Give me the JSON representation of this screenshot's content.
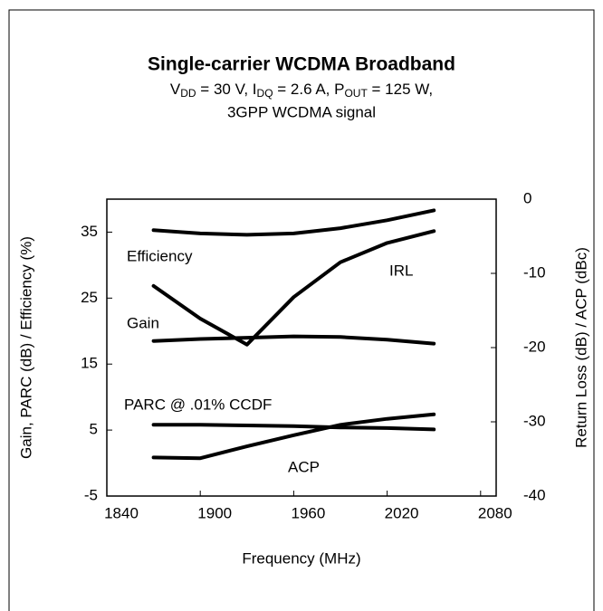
{
  "chart_data": {
    "type": "line",
    "title": "Single-carrier WCDMA Broadband",
    "subtitle": [
      "V",
      "DD",
      " = 30 V, I",
      "DQ",
      " = 2.6 A, P",
      "OUT",
      "  = 125 W,"
    ],
    "subtitle2": "3GPP WCDMA signal",
    "x_label": "Frequency (MHz)",
    "y_label": "Gain, PARC (dB)  / Efficiency (%)",
    "y2_label": "Return Loss (dB) / ACP (dBc)",
    "x": [
      1870,
      1900,
      1930,
      1960,
      1990,
      2020,
      2050
    ],
    "series": [
      {
        "name": "Efficiency",
        "color": "#000000",
        "values": [
          35.3,
          34.8,
          34.6,
          34.8,
          35.6,
          36.8,
          38.3
        ]
      },
      {
        "name": "Gain",
        "color": "#000000",
        "values": [
          18.5,
          18.8,
          19.0,
          19.2,
          19.1,
          18.7,
          18.1
        ]
      },
      {
        "name": "PARC @ .01%  CCDF",
        "color": "#000000",
        "values": [
          5.8,
          5.8,
          5.7,
          5.6,
          5.4,
          5.3,
          5.1
        ]
      },
      {
        "name": "IRL",
        "color": "#000000",
        "axis": "y2",
        "values": [
          -11.7,
          -16.1,
          -19.6,
          -13.2,
          -8.5,
          -5.9,
          -4.3
        ]
      },
      {
        "name": "ACP",
        "color": "#000000",
        "axis": "y2",
        "values": [
          -34.8,
          -34.9,
          -33.3,
          -31.8,
          -30.4,
          -29.6,
          -29.0
        ]
      }
    ],
    "xlim": [
      1840,
      2090
    ],
    "xticks": [
      1840,
      1900,
      1960,
      2020,
      2080
    ],
    "ylim": [
      -5,
      40
    ],
    "yticks": [
      -5,
      5,
      15,
      25,
      35
    ],
    "y2lim": [
      -40,
      0
    ],
    "y2ticks": [
      -40,
      -30,
      -20,
      -10,
      0
    ],
    "grid": false
  }
}
